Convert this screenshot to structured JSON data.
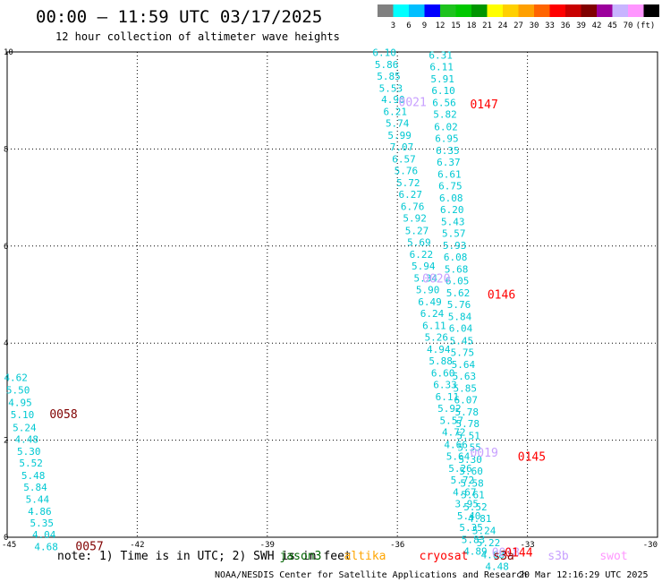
{
  "header": {
    "title": "00:00 – 11:59 UTC 03/17/2025",
    "subtitle": "12 hour collection of altimeter wave heights"
  },
  "colorbar": {
    "labels": [
      "3",
      "6",
      "9",
      "12",
      "15",
      "18",
      "21",
      "24",
      "27",
      "30",
      "33",
      "36",
      "39",
      "42",
      "45",
      "70"
    ],
    "unit": "(ft)",
    "colors": [
      "#808080",
      "#00ffff",
      "#00bfff",
      "#0000ff",
      "#1ec31e",
      "#00c800",
      "#009600",
      "#ffff00",
      "#ffd000",
      "#ffa000",
      "#ff6400",
      "#ff0000",
      "#c80000",
      "#800000",
      "#9c009c",
      "#c8b4ff",
      "#ff96ff",
      "#000000"
    ]
  },
  "footer": {
    "note": "note:  1) Time is in UTC; 2) SWH is in feet",
    "credit": "NOAA/NESDIS Center for Satellite Applications and Research",
    "timestamp": "20 Mar 12:16:29 UTC 2025",
    "satellites": [
      {
        "name": "jason3",
        "color": "#006400"
      },
      {
        "name": "altika",
        "color": "#ffa500"
      },
      {
        "name": "cryosat",
        "color": "#ff0000"
      },
      {
        "name": "s3a",
        "color": "#8b0000"
      },
      {
        "name": "s3b",
        "color": "#c8a0ff"
      },
      {
        "name": "swot",
        "color": "#ff96ff"
      }
    ]
  },
  "chart_data": {
    "type": "scatter",
    "title": "00:00 – 11:59 UTC 03/17/2025",
    "subtitle": "12 hour collection of altimeter wave heights",
    "xlim": [
      -45,
      -30
    ],
    "ylim": [
      0,
      10
    ],
    "x_ticks": [
      "-45",
      "-42",
      "-39",
      "-36",
      "-33",
      "-30"
    ],
    "y_ticks": [
      "0",
      "2",
      "4",
      "6",
      "8",
      "10"
    ],
    "grid": true,
    "value_color": "#00c8d2",
    "series": [
      {
        "track": "left",
        "points": [
          {
            "x": -44.8,
            "y": 3.22,
            "v": "4.62"
          },
          {
            "x": -44.75,
            "y": 2.96,
            "v": "5.50"
          },
          {
            "x": -44.7,
            "y": 2.7,
            "v": "4.95"
          },
          {
            "x": -44.65,
            "y": 2.45,
            "v": "5.10"
          },
          {
            "x": -44.6,
            "y": 2.19,
            "v": "5.24"
          },
          {
            "x": -44.55,
            "y": 1.95,
            "v": "4.48"
          },
          {
            "x": -44.5,
            "y": 1.7,
            "v": "5.30"
          },
          {
            "x": -44.45,
            "y": 1.46,
            "v": "5.52"
          },
          {
            "x": -44.4,
            "y": 1.2,
            "v": "5.48"
          },
          {
            "x": -44.35,
            "y": 0.96,
            "v": "5.84"
          },
          {
            "x": -44.3,
            "y": 0.71,
            "v": "5.44"
          },
          {
            "x": -44.25,
            "y": 0.46,
            "v": "4.86"
          },
          {
            "x": -44.2,
            "y": 0.22,
            "v": "5.35"
          },
          {
            "x": -44.15,
            "y": -0.02,
            "v": "4.04"
          },
          {
            "x": -44.1,
            "y": -0.27,
            "v": "4.68"
          }
        ]
      },
      {
        "track": "middle",
        "points": [
          {
            "x": -36.3,
            "y": 9.92,
            "v": "6.10"
          },
          {
            "x": -36.25,
            "y": 9.67,
            "v": "5.86"
          },
          {
            "x": -36.2,
            "y": 9.43,
            "v": "5.85"
          },
          {
            "x": -36.15,
            "y": 9.18,
            "v": "5.53"
          },
          {
            "x": -36.1,
            "y": 8.95,
            "v": "4.90"
          },
          {
            "x": -36.05,
            "y": 8.7,
            "v": "6.21"
          },
          {
            "x": -36.0,
            "y": 8.46,
            "v": "5.74"
          },
          {
            "x": -35.95,
            "y": 8.21,
            "v": "5.99"
          },
          {
            "x": -35.9,
            "y": 7.97,
            "v": "7.07"
          },
          {
            "x": -35.85,
            "y": 7.72,
            "v": "6.57"
          },
          {
            "x": -35.8,
            "y": 7.48,
            "v": "5.76"
          },
          {
            "x": -35.75,
            "y": 7.23,
            "v": "5.72"
          },
          {
            "x": -35.7,
            "y": 6.99,
            "v": "6.27"
          },
          {
            "x": -35.65,
            "y": 6.74,
            "v": "6.76"
          },
          {
            "x": -35.6,
            "y": 6.5,
            "v": "5.92"
          },
          {
            "x": -35.55,
            "y": 6.25,
            "v": "5.27"
          },
          {
            "x": -35.5,
            "y": 6.01,
            "v": "5.69"
          },
          {
            "x": -35.45,
            "y": 5.76,
            "v": "6.22"
          },
          {
            "x": -35.4,
            "y": 5.52,
            "v": "5.94"
          },
          {
            "x": -35.35,
            "y": 5.27,
            "v": "5.34"
          },
          {
            "x": -35.3,
            "y": 5.03,
            "v": "5.90"
          },
          {
            "x": -35.25,
            "y": 4.78,
            "v": "6.49"
          },
          {
            "x": -35.2,
            "y": 4.54,
            "v": "6.24"
          },
          {
            "x": -35.15,
            "y": 4.29,
            "v": "6.11"
          },
          {
            "x": -35.1,
            "y": 4.05,
            "v": "5.26"
          },
          {
            "x": -35.05,
            "y": 3.8,
            "v": "4.94"
          },
          {
            "x": -35.0,
            "y": 3.56,
            "v": "5.88"
          },
          {
            "x": -34.95,
            "y": 3.31,
            "v": "6.60"
          },
          {
            "x": -34.9,
            "y": 3.07,
            "v": "6.33"
          },
          {
            "x": -34.85,
            "y": 2.82,
            "v": "6.11"
          },
          {
            "x": -34.8,
            "y": 2.58,
            "v": "5.92"
          },
          {
            "x": -34.75,
            "y": 2.33,
            "v": "5.57"
          },
          {
            "x": -34.7,
            "y": 2.09,
            "v": "4.72"
          },
          {
            "x": -34.65,
            "y": 1.84,
            "v": "4.66"
          },
          {
            "x": -34.6,
            "y": 1.6,
            "v": "5.64"
          },
          {
            "x": -34.55,
            "y": 1.35,
            "v": "5.26"
          },
          {
            "x": -34.5,
            "y": 1.11,
            "v": "5.72"
          },
          {
            "x": -34.45,
            "y": 0.86,
            "v": "4.67"
          },
          {
            "x": -34.4,
            "y": 0.62,
            "v": "3.95"
          },
          {
            "x": -34.35,
            "y": 0.37,
            "v": "5.40"
          },
          {
            "x": -34.3,
            "y": 0.13,
            "v": "5.35"
          },
          {
            "x": -34.25,
            "y": -0.12,
            "v": "5.83"
          },
          {
            "x": -34.2,
            "y": -0.36,
            "v": "4.89"
          }
        ]
      },
      {
        "track": "right",
        "points": [
          {
            "x": -35.0,
            "y": 9.86,
            "v": "6.31"
          },
          {
            "x": -34.98,
            "y": 9.62,
            "v": "6.11"
          },
          {
            "x": -34.96,
            "y": 9.37,
            "v": "5.91"
          },
          {
            "x": -34.94,
            "y": 9.13,
            "v": "6.10"
          },
          {
            "x": -34.92,
            "y": 8.88,
            "v": "6.56"
          },
          {
            "x": -34.9,
            "y": 8.64,
            "v": "5.82"
          },
          {
            "x": -34.88,
            "y": 8.39,
            "v": "6.02"
          },
          {
            "x": -34.86,
            "y": 8.15,
            "v": "6.95"
          },
          {
            "x": -34.84,
            "y": 7.9,
            "v": "6.35"
          },
          {
            "x": -34.82,
            "y": 7.66,
            "v": "6.37"
          },
          {
            "x": -34.8,
            "y": 7.41,
            "v": "6.61"
          },
          {
            "x": -34.78,
            "y": 7.17,
            "v": "6.75"
          },
          {
            "x": -34.76,
            "y": 6.92,
            "v": "6.08"
          },
          {
            "x": -34.74,
            "y": 6.68,
            "v": "6.20"
          },
          {
            "x": -34.72,
            "y": 6.43,
            "v": "5.43"
          },
          {
            "x": -34.7,
            "y": 6.19,
            "v": "5.57"
          },
          {
            "x": -34.68,
            "y": 5.94,
            "v": "5.93"
          },
          {
            "x": -34.66,
            "y": 5.7,
            "v": "6.08"
          },
          {
            "x": -34.64,
            "y": 5.45,
            "v": "5.68"
          },
          {
            "x": -34.62,
            "y": 5.21,
            "v": "6.05"
          },
          {
            "x": -34.6,
            "y": 4.96,
            "v": "5.62"
          },
          {
            "x": -34.58,
            "y": 4.72,
            "v": "5.76"
          },
          {
            "x": -34.56,
            "y": 4.47,
            "v": "5.84"
          },
          {
            "x": -34.54,
            "y": 4.23,
            "v": "6.04"
          },
          {
            "x": -34.52,
            "y": 3.98,
            "v": "5.45"
          },
          {
            "x": -34.5,
            "y": 3.74,
            "v": "5.75"
          },
          {
            "x": -34.48,
            "y": 3.49,
            "v": "5.64"
          },
          {
            "x": -34.46,
            "y": 3.25,
            "v": "5.63"
          },
          {
            "x": -34.44,
            "y": 3.0,
            "v": "5.85"
          },
          {
            "x": -34.42,
            "y": 2.76,
            "v": "6.07"
          },
          {
            "x": -34.4,
            "y": 2.51,
            "v": "5.78"
          },
          {
            "x": -34.38,
            "y": 2.27,
            "v": "5.78"
          },
          {
            "x": -34.36,
            "y": 2.02,
            "v": "5.51"
          },
          {
            "x": -34.34,
            "y": 1.78,
            "v": "5.55"
          },
          {
            "x": -34.32,
            "y": 1.53,
            "v": "5.30"
          },
          {
            "x": -34.3,
            "y": 1.29,
            "v": "5.60"
          },
          {
            "x": -34.28,
            "y": 1.04,
            "v": "5.58"
          },
          {
            "x": -34.26,
            "y": 0.8,
            "v": "5.61"
          },
          {
            "x": -34.2,
            "y": 0.55,
            "v": "5.52"
          },
          {
            "x": -34.1,
            "y": 0.31,
            "v": "4.81"
          },
          {
            "x": -34.0,
            "y": 0.06,
            "v": "5.24"
          },
          {
            "x": -33.9,
            "y": -0.18,
            "v": "5.22"
          },
          {
            "x": -33.8,
            "y": -0.43,
            "v": "4.68"
          },
          {
            "x": -33.7,
            "y": -0.67,
            "v": "4.48"
          }
        ]
      }
    ],
    "pass_labels": [
      {
        "text": "0058",
        "x": -43.7,
        "y": 2.45,
        "color": "#800000"
      },
      {
        "text": "0057",
        "x": -43.1,
        "y": -0.27,
        "color": "#800000"
      },
      {
        "text": "0021",
        "x": -35.65,
        "y": 8.88,
        "color": "#c8a0ff"
      },
      {
        "text": "0147",
        "x": -34.0,
        "y": 8.84,
        "color": "#ff0000"
      },
      {
        "text": "0020",
        "x": -35.1,
        "y": 5.25,
        "color": "#c8a0ff"
      },
      {
        "text": "0146",
        "x": -33.6,
        "y": 4.92,
        "color": "#ff0000"
      },
      {
        "text": "0019",
        "x": -34.0,
        "y": 1.66,
        "color": "#c8a0ff"
      },
      {
        "text": "0145",
        "x": -32.9,
        "y": 1.58,
        "color": "#ff0000"
      },
      {
        "text": "0018",
        "x": -33.5,
        "y": -0.4,
        "color": "#c8a0ff"
      },
      {
        "text": "0144",
        "x": -33.2,
        "y": -0.4,
        "color": "#ff0000"
      }
    ]
  }
}
